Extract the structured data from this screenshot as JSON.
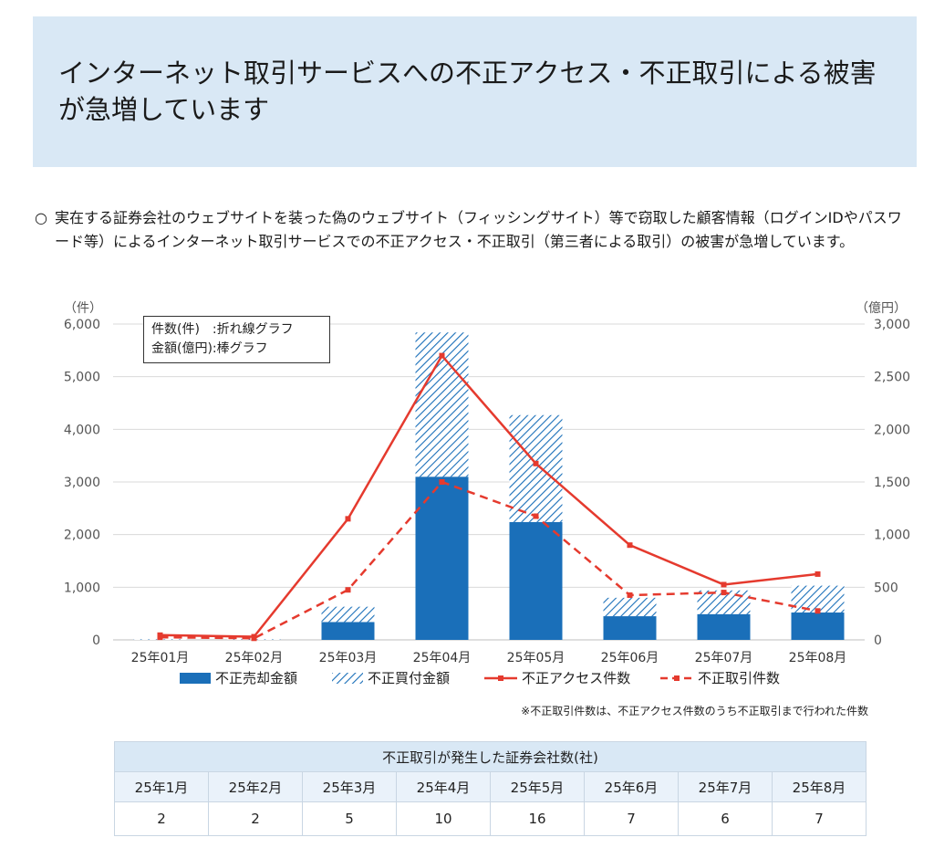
{
  "header": {
    "title": "インターネット取引サービスへの不正アクセス・不正取引による被害が急増しています"
  },
  "intro": {
    "bullet": "○",
    "text": "実在する証券会社のウェブサイトを装った偽のウェブサイト（フィッシングサイト）等で窃取した顧客情報（ログインIDやパスワード等）によるインターネット取引サービスでの不正アクセス・不正取引（第三者による取引）の被害が急増しています。"
  },
  "legend_box": {
    "line1": "件数(件)　:折れ線グラフ",
    "line2": "金額(億円):棒グラフ"
  },
  "chart_data": {
    "type": "bar",
    "categories": [
      "25年01月",
      "25年02月",
      "25年03月",
      "25年04月",
      "25年05月",
      "25年06月",
      "25年07月",
      "25年08月"
    ],
    "left_axis": {
      "unit_label": "（件）",
      "ylim": [
        0,
        6000
      ],
      "ticks": [
        "0",
        "1,000",
        "2,000",
        "3,000",
        "4,000",
        "5,000",
        "6,000"
      ]
    },
    "right_axis": {
      "unit_label": "（億円）",
      "ylim": [
        0,
        3000
      ],
      "ticks": [
        "0",
        "500",
        "1,000",
        "1,500",
        "2,000",
        "2,500",
        "3,000"
      ]
    },
    "series": [
      {
        "name": "不正売却金額",
        "kind": "bar-solid",
        "axis": "right",
        "values": [
          0,
          0,
          170,
          1550,
          1120,
          225,
          245,
          260
        ]
      },
      {
        "name": "不正買付金額",
        "kind": "bar-hatched",
        "axis": "right",
        "values": [
          5,
          5,
          145,
          1370,
          1015,
          175,
          225,
          255
        ]
      },
      {
        "name": "不正アクセス件数",
        "kind": "line-solid",
        "axis": "left",
        "values": [
          90,
          60,
          2300,
          5400,
          3350,
          1800,
          1050,
          1250
        ]
      },
      {
        "name": "不正取引件数",
        "kind": "line-dashed",
        "axis": "left",
        "values": [
          50,
          30,
          950,
          3000,
          2350,
          850,
          900,
          550
        ]
      }
    ],
    "colors": {
      "solid_bar": "#1a6fb9",
      "hatch": "#1a6fb9",
      "line": "#e53a2e",
      "grid": "#d9d9d9"
    }
  },
  "footnote": "※不正取引件数は、不正アクセス件数のうち不正取引まで行われた件数",
  "table": {
    "caption": "不正取引が発生した証券会社数(社)",
    "headers": [
      "25年1月",
      "25年2月",
      "25年3月",
      "25年4月",
      "25年5月",
      "25年6月",
      "25年7月",
      "25年8月"
    ],
    "values": [
      "2",
      "2",
      "5",
      "10",
      "16",
      "7",
      "6",
      "7"
    ]
  }
}
